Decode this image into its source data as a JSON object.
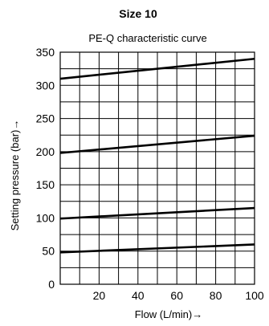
{
  "chart_data": {
    "type": "line",
    "title": "Size 10",
    "subtitle": "PE-Q characteristic curve",
    "xlabel": "Flow  (L/min)→",
    "ylabel": "Setting pressure  (bar)→",
    "xlim": [
      0,
      100
    ],
    "ylim": [
      0,
      350
    ],
    "x_ticks": [
      20,
      40,
      60,
      80,
      100
    ],
    "y_ticks": [
      0,
      50,
      100,
      150,
      200,
      250,
      300,
      350
    ],
    "grid": true,
    "series": [
      {
        "x": [
          0,
          100
        ],
        "y": [
          310,
          340
        ]
      },
      {
        "x": [
          0,
          100
        ],
        "y": [
          198,
          224
        ]
      },
      {
        "x": [
          0,
          100
        ],
        "y": [
          99,
          115
        ]
      },
      {
        "x": [
          0,
          100
        ],
        "y": [
          48,
          60
        ]
      }
    ],
    "line_color": "#000000",
    "grid_color": "#000000"
  }
}
